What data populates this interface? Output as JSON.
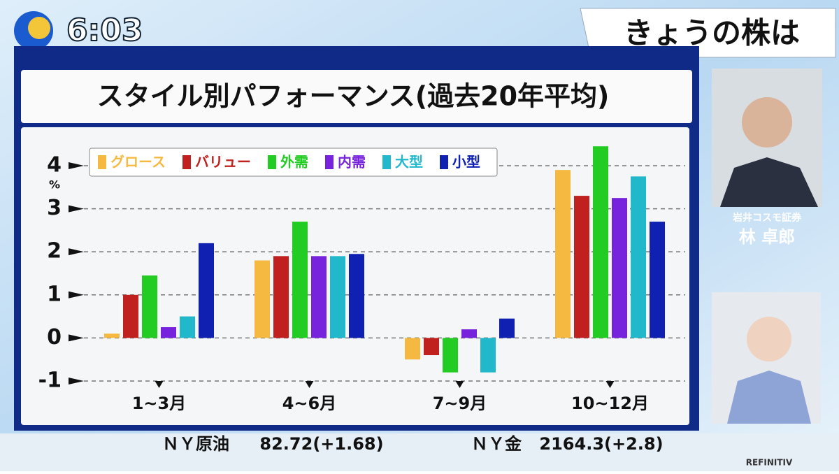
{
  "clock": "6:03",
  "header": "きょうの株は",
  "guest": {
    "company": "岩井コスモ証券",
    "name": "林 卓郎"
  },
  "ticker": [
    {
      "name": "ＮＹ原油",
      "value": "82.72(+1.68)"
    },
    {
      "name": "ＮＹ金",
      "value": "2164.3(+2.8)"
    }
  ],
  "brand": "REFINITIV",
  "chart_data": {
    "type": "bar",
    "title": "スタイル別パフォーマンス(過去20年平均)",
    "y_unit": "%",
    "categories": [
      "1~3月",
      "4~6月",
      "7~9月",
      "10~12月"
    ],
    "series": [
      {
        "name": "グロース",
        "color": "#f5b942",
        "values": [
          0.1,
          1.8,
          -0.5,
          3.9
        ]
      },
      {
        "name": "バリュー",
        "color": "#c0201e",
        "values": [
          1.0,
          1.9,
          -0.4,
          3.3
        ]
      },
      {
        "name": "外需",
        "color": "#22cc22",
        "values": [
          1.45,
          2.7,
          -0.8,
          4.45
        ]
      },
      {
        "name": "内需",
        "color": "#7722dd",
        "values": [
          0.25,
          1.9,
          0.2,
          3.25
        ]
      },
      {
        "name": "大型",
        "color": "#22b8cc",
        "values": [
          0.5,
          1.9,
          -0.8,
          3.75
        ]
      },
      {
        "name": "小型",
        "color": "#1020b0",
        "values": [
          2.2,
          1.95,
          0.45,
          2.7
        ]
      }
    ],
    "ylim": [
      -1,
      4.6
    ],
    "yticks": [
      -1,
      0,
      1,
      2,
      3,
      4
    ],
    "grid": true
  }
}
